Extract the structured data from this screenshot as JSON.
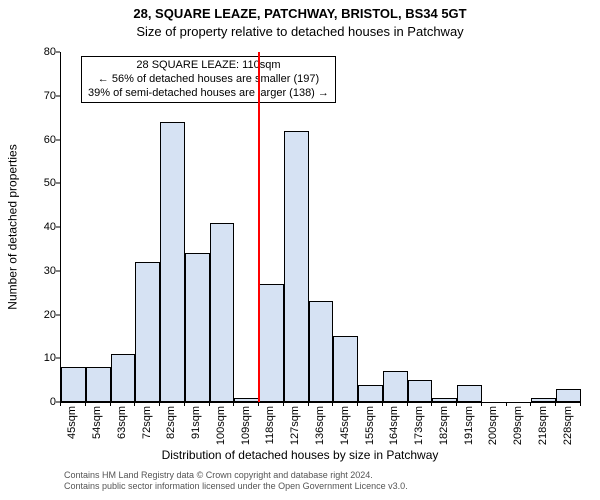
{
  "titles": {
    "address": "28, SQUARE LEAZE, PATCHWAY, BRISTOL, BS34 5GT",
    "subtitle": "Size of property relative to detached houses in Patchway"
  },
  "chart": {
    "type": "histogram",
    "ylabel": "Number of detached properties",
    "xlabel": "Distribution of detached houses by size in Patchway",
    "ylim_max": 80,
    "ytick_step": 10,
    "bar_fill": "#d6e2f3",
    "bar_stroke": "#000000",
    "background": "#ffffff",
    "marker_color": "#ff0000",
    "marker_index": 7,
    "categories": [
      "45sqm",
      "54sqm",
      "63sqm",
      "72sqm",
      "82sqm",
      "91sqm",
      "100sqm",
      "109sqm",
      "118sqm",
      "127sqm",
      "136sqm",
      "145sqm",
      "155sqm",
      "164sqm",
      "173sqm",
      "182sqm",
      "191sqm",
      "200sqm",
      "209sqm",
      "218sqm",
      "228sqm"
    ],
    "values": [
      8,
      8,
      11,
      32,
      64,
      34,
      41,
      1,
      27,
      62,
      23,
      15,
      4,
      7,
      5,
      1,
      4,
      0,
      0,
      1,
      3
    ],
    "annotation": {
      "line1": "28 SQUARE LEAZE: 110sqm",
      "line2": "← 56% of detached houses are smaller (197)",
      "line3": "39% of semi-detached houses are larger (138) →"
    }
  },
  "attribution": {
    "line1": "Contains HM Land Registry data © Crown copyright and database right 2024.",
    "line2": "Contains public sector information licensed under the Open Government Licence v3.0."
  }
}
